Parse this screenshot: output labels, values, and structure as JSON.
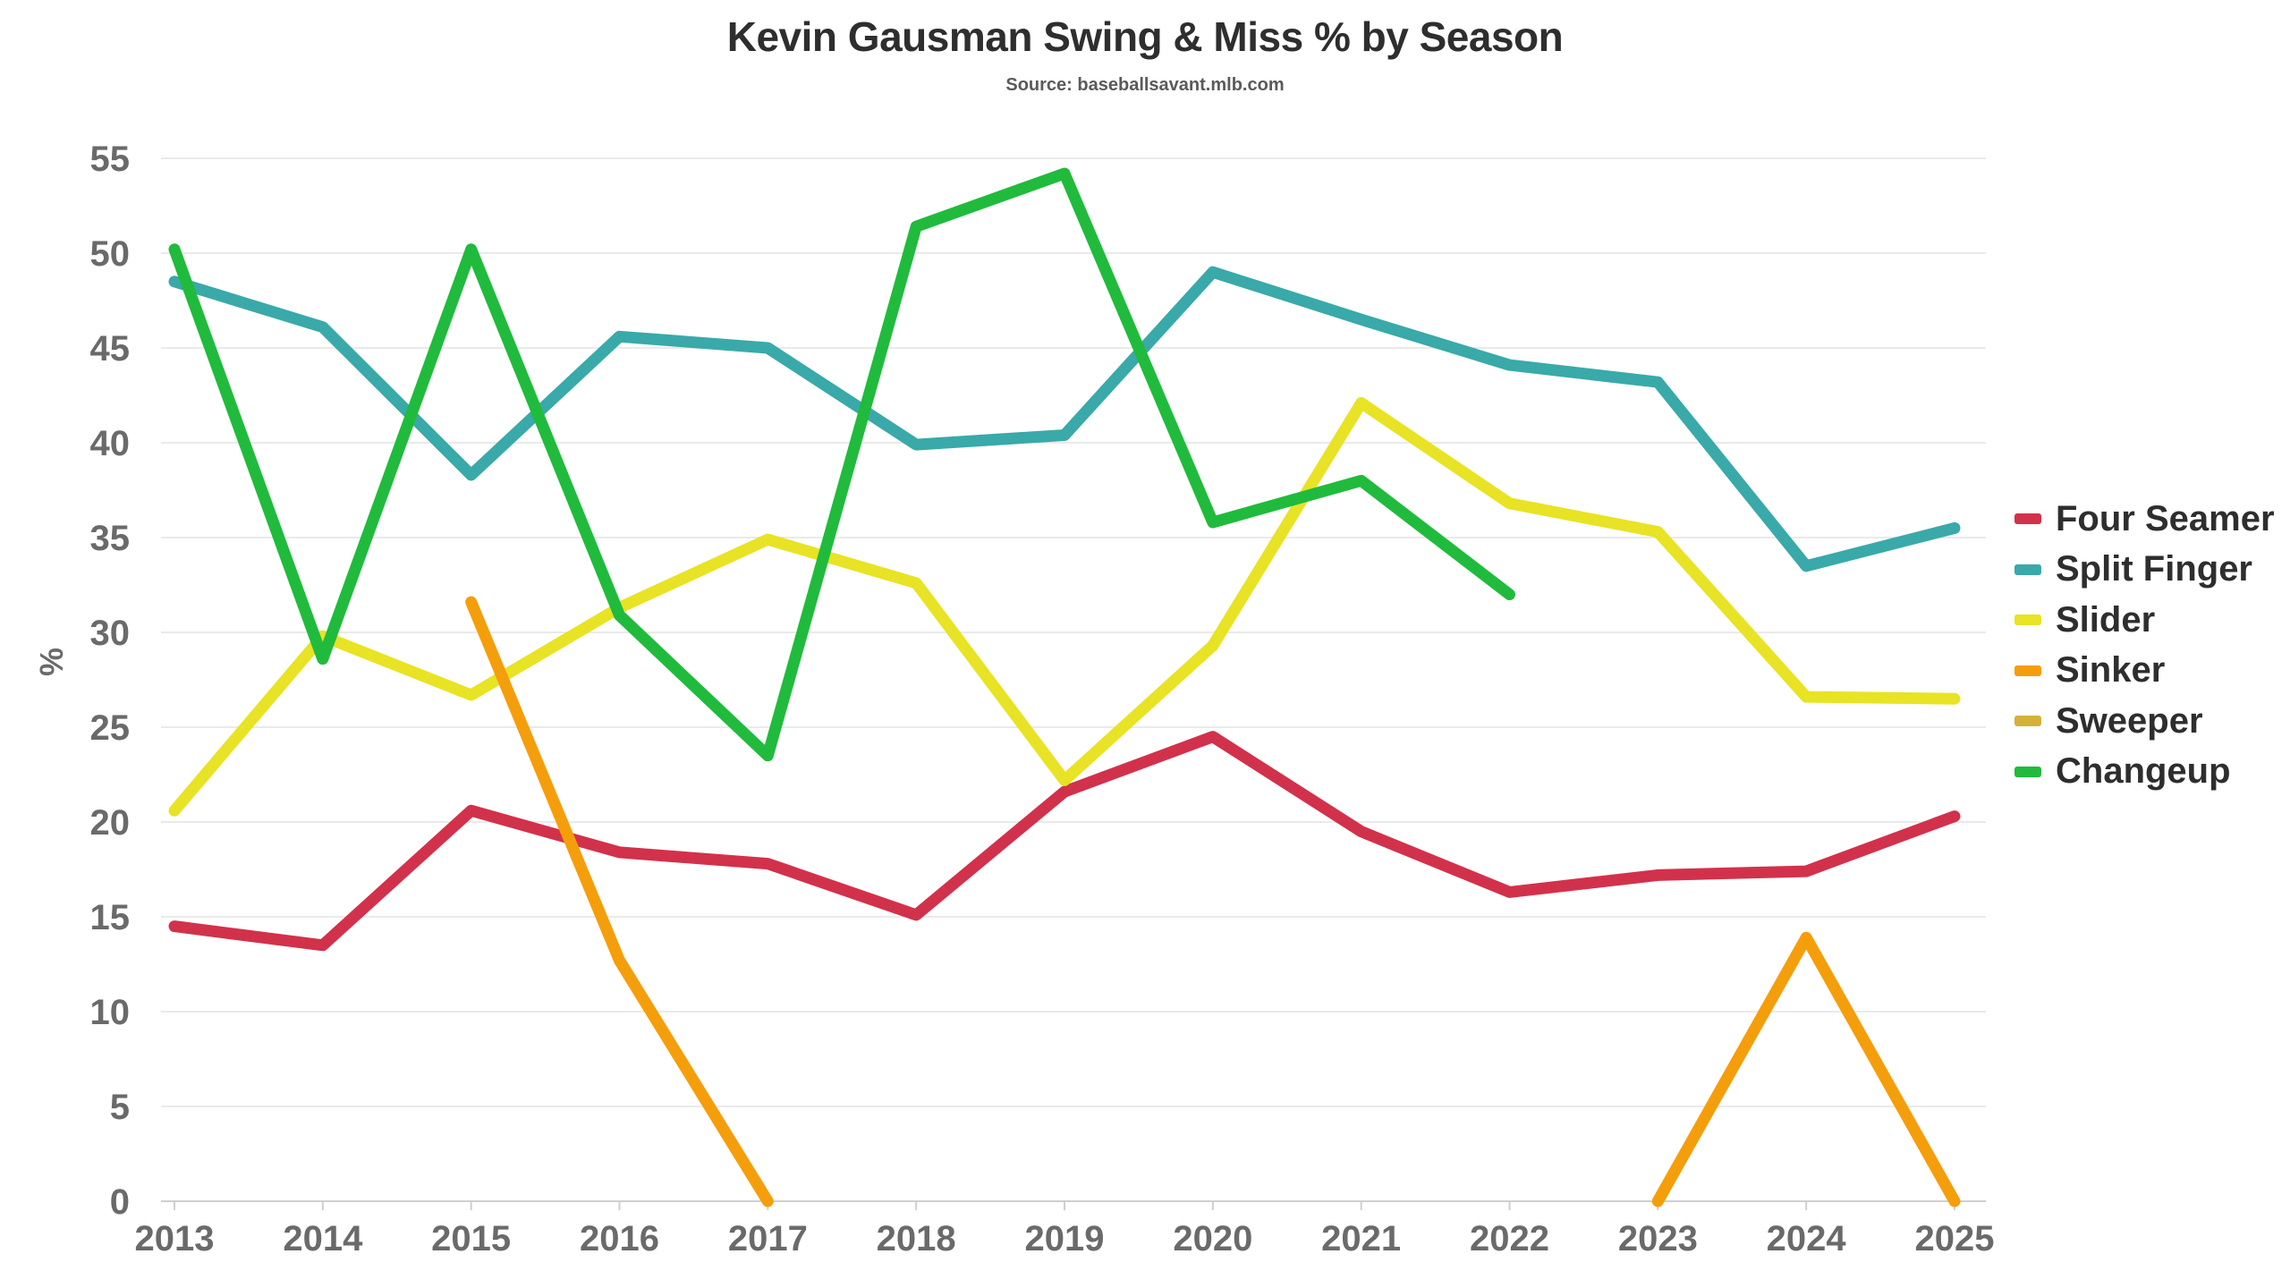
{
  "title": "Kevin Gausman Swing & Miss % by Season",
  "subtitle": "Source: baseballsavant.mlb.com",
  "chart_data": {
    "type": "line",
    "title": "Kevin Gausman Swing & Miss % by Season",
    "subtitle": "Source: baseballsavant.mlb.com",
    "xlabel": "",
    "ylabel": "%",
    "x": [
      "2013",
      "2014",
      "2015",
      "2016",
      "2017",
      "2018",
      "2019",
      "2020",
      "2021",
      "2022",
      "2023",
      "2024",
      "2025"
    ],
    "ylim": [
      0,
      55
    ],
    "yticks": [
      0,
      5,
      10,
      15,
      20,
      25,
      30,
      35,
      40,
      45,
      50,
      55
    ],
    "grid": true,
    "legend_position": "right",
    "series": [
      {
        "name": "Four Seamer",
        "color": "#d2314b",
        "values": [
          14.5,
          13.5,
          20.6,
          18.4,
          17.8,
          15.1,
          21.6,
          24.5,
          19.5,
          16.3,
          17.2,
          17.4,
          20.3
        ]
      },
      {
        "name": "Split Finger",
        "color": "#3aa9a9",
        "values": [
          48.5,
          46.1,
          38.3,
          45.6,
          45.0,
          39.9,
          40.4,
          49.0,
          46.5,
          44.1,
          43.2,
          33.5,
          35.5
        ]
      },
      {
        "name": "Slider",
        "color": "#e8e324",
        "values": [
          20.6,
          29.8,
          26.7,
          31.3,
          34.9,
          32.6,
          22.2,
          29.3,
          42.1,
          36.8,
          35.3,
          26.6,
          26.5
        ]
      },
      {
        "name": "Sinker",
        "color": "#f59e0b",
        "values": [
          null,
          null,
          31.6,
          12.7,
          0,
          null,
          null,
          null,
          null,
          null,
          0,
          13.9,
          0
        ]
      },
      {
        "name": "Sweeper",
        "color": "#d4b23a",
        "values": [
          null,
          null,
          null,
          null,
          null,
          null,
          null,
          null,
          null,
          null,
          null,
          null,
          null
        ]
      },
      {
        "name": "Changeup",
        "color": "#20bb3c",
        "values": [
          50.2,
          28.6,
          50.2,
          30.9,
          23.5,
          51.4,
          54.2,
          35.8,
          38.0,
          32.0,
          null,
          null,
          null
        ]
      }
    ]
  }
}
